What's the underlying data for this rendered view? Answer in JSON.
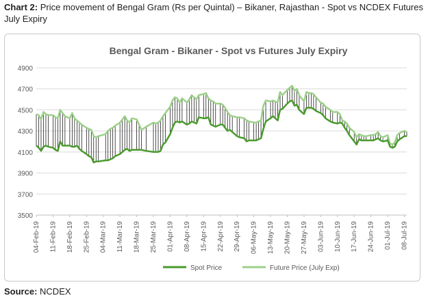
{
  "caption": {
    "prefix": "Chart 2:",
    "text": "Price movement of Bengal Gram (Rs per Quintal) – Bikaner, Rajasthan - Spot vs NCDEX Futures July Expiry"
  },
  "source": {
    "label": "Source:",
    "value": "NCDEX"
  },
  "colors": {
    "spot": "#4a9a2c",
    "futures": "#9dd08a",
    "connector": "#000000",
    "grid": "#d9d9d9",
    "text": "#595959"
  },
  "chart_data": {
    "type": "line",
    "title": "Bengal Gram - Bikaner - Spot vs Futures July Expiry",
    "xlabel": "",
    "ylabel": "",
    "ylim": [
      3500,
      4900
    ],
    "yticks": [
      3500,
      3700,
      3900,
      4100,
      4300,
      4500,
      4700,
      4900
    ],
    "grid": true,
    "legend": "bottom",
    "x_range": [
      "04-Feb-19",
      "09-Jul-19"
    ],
    "xtick_labels": [
      "04-Feb-19",
      "11-Feb-19",
      "18-Feb-19",
      "25-Feb-19",
      "04-Mar-19",
      "11-Mar-19",
      "18-Mar-19",
      "25-Mar-19",
      "01-Apr-19",
      "08-Apr-19",
      "15-Apr-19",
      "22-Apr-19",
      "29-Apr-19",
      "06-May-19",
      "13-May-19",
      "20-May-19",
      "27-May-19",
      "03-Jun-19",
      "10-Jun-19",
      "17-Jun-19",
      "24-Jun-19",
      "01-Jul-19",
      "08-Jul-19"
    ],
    "series": [
      {
        "name": "Spot Price",
        "points": [
          [
            "04-Feb-19",
            4160
          ],
          [
            "05-Feb-19",
            4140
          ],
          [
            "06-Feb-19",
            4110
          ],
          [
            "07-Feb-19",
            4150
          ],
          [
            "08-Feb-19",
            4160
          ],
          [
            "09-Feb-19",
            4150
          ],
          [
            "11-Feb-19",
            4140
          ],
          [
            "12-Feb-19",
            4120
          ],
          [
            "13-Feb-19",
            4110
          ],
          [
            "14-Feb-19",
            4200
          ],
          [
            "15-Feb-19",
            4160
          ],
          [
            "16-Feb-19",
            4160
          ],
          [
            "18-Feb-19",
            4160
          ],
          [
            "19-Feb-19",
            4150
          ],
          [
            "20-Feb-19",
            4150
          ],
          [
            "21-Feb-19",
            4160
          ],
          [
            "22-Feb-19",
            4130
          ],
          [
            "23-Feb-19",
            4110
          ],
          [
            "25-Feb-19",
            4080
          ],
          [
            "26-Feb-19",
            4060
          ],
          [
            "27-Feb-19",
            4050
          ],
          [
            "28-Feb-19",
            4000
          ],
          [
            "01-Mar-19",
            4010
          ],
          [
            "02-Mar-19",
            4010
          ],
          [
            "05-Mar-19",
            4020
          ],
          [
            "06-Mar-19",
            4020
          ],
          [
            "07-Mar-19",
            4030
          ],
          [
            "08-Mar-19",
            4040
          ],
          [
            "09-Mar-19",
            4060
          ],
          [
            "11-Mar-19",
            4080
          ],
          [
            "12-Mar-19",
            4100
          ],
          [
            "13-Mar-19",
            4120
          ],
          [
            "14-Mar-19",
            4130
          ],
          [
            "15-Mar-19",
            4110
          ],
          [
            "16-Mar-19",
            4120
          ],
          [
            "18-Mar-19",
            4120
          ],
          [
            "19-Mar-19",
            4120
          ],
          [
            "20-Mar-19",
            4120
          ],
          [
            "22-Mar-19",
            4110
          ],
          [
            "25-Mar-19",
            4100
          ],
          [
            "26-Mar-19",
            4100
          ],
          [
            "27-Mar-19",
            4100
          ],
          [
            "28-Mar-19",
            4110
          ],
          [
            "29-Mar-19",
            4170
          ],
          [
            "30-Mar-19",
            4190
          ],
          [
            "01-Apr-19",
            4270
          ],
          [
            "02-Apr-19",
            4330
          ],
          [
            "03-Apr-19",
            4380
          ],
          [
            "04-Apr-19",
            4390
          ],
          [
            "05-Apr-19",
            4380
          ],
          [
            "06-Apr-19",
            4390
          ],
          [
            "08-Apr-19",
            4360
          ],
          [
            "09-Apr-19",
            4370
          ],
          [
            "10-Apr-19",
            4390
          ],
          [
            "11-Apr-19",
            4380
          ],
          [
            "12-Apr-19",
            4370
          ],
          [
            "13-Apr-19",
            4430
          ],
          [
            "15-Apr-19",
            4420
          ],
          [
            "16-Apr-19",
            4420
          ],
          [
            "17-Apr-19",
            4430
          ],
          [
            "18-Apr-19",
            4360
          ],
          [
            "19-Apr-19",
            4350
          ],
          [
            "20-Apr-19",
            4340
          ],
          [
            "22-Apr-19",
            4360
          ],
          [
            "23-Apr-19",
            4360
          ],
          [
            "24-Apr-19",
            4330
          ],
          [
            "25-Apr-19",
            4300
          ],
          [
            "26-Apr-19",
            4310
          ],
          [
            "27-Apr-19",
            4290
          ],
          [
            "29-Apr-19",
            4250
          ],
          [
            "30-Apr-19",
            4240
          ],
          [
            "02-May-19",
            4230
          ],
          [
            "03-May-19",
            4200
          ],
          [
            "04-May-19",
            4210
          ],
          [
            "06-May-19",
            4210
          ],
          [
            "07-May-19",
            4210
          ],
          [
            "08-May-19",
            4220
          ],
          [
            "09-May-19",
            4230
          ],
          [
            "10-May-19",
            4320
          ],
          [
            "11-May-19",
            4390
          ],
          [
            "13-May-19",
            4420
          ],
          [
            "14-May-19",
            4440
          ],
          [
            "15-May-19",
            4420
          ],
          [
            "16-May-19",
            4400
          ],
          [
            "17-May-19",
            4500
          ],
          [
            "18-May-19",
            4510
          ],
          [
            "20-May-19",
            4560
          ],
          [
            "21-May-19",
            4580
          ],
          [
            "22-May-19",
            4590
          ],
          [
            "23-May-19",
            4540
          ],
          [
            "24-May-19",
            4550
          ],
          [
            "25-May-19",
            4500
          ],
          [
            "27-May-19",
            4460
          ],
          [
            "28-May-19",
            4520
          ],
          [
            "29-May-19",
            4520
          ],
          [
            "30-May-19",
            4520
          ],
          [
            "31-May-19",
            4510
          ],
          [
            "01-Jun-19",
            4490
          ],
          [
            "03-Jun-19",
            4470
          ],
          [
            "04-Jun-19",
            4450
          ],
          [
            "05-Jun-19",
            4420
          ],
          [
            "07-Jun-19",
            4390
          ],
          [
            "08-Jun-19",
            4380
          ],
          [
            "10-Jun-19",
            4370
          ],
          [
            "11-Jun-19",
            4380
          ],
          [
            "12-Jun-19",
            4370
          ],
          [
            "13-Jun-19",
            4330
          ],
          [
            "14-Jun-19",
            4300
          ],
          [
            "15-Jun-19",
            4260
          ],
          [
            "17-Jun-19",
            4200
          ],
          [
            "18-Jun-19",
            4170
          ],
          [
            "19-Jun-19",
            4220
          ],
          [
            "20-Jun-19",
            4210
          ],
          [
            "21-Jun-19",
            4210
          ],
          [
            "22-Jun-19",
            4210
          ],
          [
            "24-Jun-19",
            4210
          ],
          [
            "25-Jun-19",
            4210
          ],
          [
            "26-Jun-19",
            4220
          ],
          [
            "27-Jun-19",
            4230
          ],
          [
            "28-Jun-19",
            4210
          ],
          [
            "29-Jun-19",
            4200
          ],
          [
            "01-Jul-19",
            4210
          ],
          [
            "02-Jul-19",
            4150
          ],
          [
            "03-Jul-19",
            4140
          ],
          [
            "04-Jul-19",
            4150
          ],
          [
            "05-Jul-19",
            4200
          ],
          [
            "06-Jul-19",
            4220
          ],
          [
            "08-Jul-19",
            4250
          ],
          [
            "09-Jul-19",
            4250
          ]
        ]
      },
      {
        "name": "Future Price (July Exp)",
        "points": [
          [
            "04-Feb-19",
            4460
          ],
          [
            "05-Feb-19",
            4450
          ],
          [
            "06-Feb-19",
            4410
          ],
          [
            "07-Feb-19",
            4480
          ],
          [
            "08-Feb-19",
            4460
          ],
          [
            "09-Feb-19",
            4450
          ],
          [
            "11-Feb-19",
            4450
          ],
          [
            "12-Feb-19",
            4430
          ],
          [
            "13-Feb-19",
            4420
          ],
          [
            "14-Feb-19",
            4500
          ],
          [
            "15-Feb-19",
            4470
          ],
          [
            "16-Feb-19",
            4440
          ],
          [
            "18-Feb-19",
            4420
          ],
          [
            "19-Feb-19",
            4470
          ],
          [
            "20-Feb-19",
            4420
          ],
          [
            "21-Feb-19",
            4400
          ],
          [
            "22-Feb-19",
            4380
          ],
          [
            "23-Feb-19",
            4360
          ],
          [
            "25-Feb-19",
            4330
          ],
          [
            "26-Feb-19",
            4320
          ],
          [
            "27-Feb-19",
            4310
          ],
          [
            "28-Feb-19",
            4250
          ],
          [
            "01-Mar-19",
            4240
          ],
          [
            "02-Mar-19",
            4250
          ],
          [
            "05-Mar-19",
            4270
          ],
          [
            "06-Mar-19",
            4300
          ],
          [
            "07-Mar-19",
            4320
          ],
          [
            "08-Mar-19",
            4330
          ],
          [
            "09-Mar-19",
            4350
          ],
          [
            "11-Mar-19",
            4380
          ],
          [
            "12-Mar-19",
            4410
          ],
          [
            "13-Mar-19",
            4440
          ],
          [
            "14-Mar-19",
            4400
          ],
          [
            "15-Mar-19",
            4380
          ],
          [
            "16-Mar-19",
            4420
          ],
          [
            "18-Mar-19",
            4410
          ],
          [
            "19-Mar-19",
            4360
          ],
          [
            "20-Mar-19",
            4310
          ],
          [
            "22-Mar-19",
            4340
          ],
          [
            "25-Mar-19",
            4380
          ],
          [
            "26-Mar-19",
            4370
          ],
          [
            "27-Mar-19",
            4380
          ],
          [
            "28-Mar-19",
            4400
          ],
          [
            "29-Mar-19",
            4440
          ],
          [
            "30-Mar-19",
            4470
          ],
          [
            "01-Apr-19",
            4530
          ],
          [
            "02-Apr-19",
            4590
          ],
          [
            "03-Apr-19",
            4620
          ],
          [
            "04-Apr-19",
            4610
          ],
          [
            "05-Apr-19",
            4570
          ],
          [
            "06-Apr-19",
            4610
          ],
          [
            "08-Apr-19",
            4570
          ],
          [
            "09-Apr-19",
            4600
          ],
          [
            "10-Apr-19",
            4640
          ],
          [
            "11-Apr-19",
            4620
          ],
          [
            "12-Apr-19",
            4600
          ],
          [
            "13-Apr-19",
            4640
          ],
          [
            "15-Apr-19",
            4650
          ],
          [
            "16-Apr-19",
            4660
          ],
          [
            "17-Apr-19",
            4610
          ],
          [
            "18-Apr-19",
            4590
          ],
          [
            "19-Apr-19",
            4580
          ],
          [
            "20-Apr-19",
            4560
          ],
          [
            "22-Apr-19",
            4560
          ],
          [
            "23-Apr-19",
            4550
          ],
          [
            "24-Apr-19",
            4520
          ],
          [
            "25-Apr-19",
            4480
          ],
          [
            "26-Apr-19",
            4450
          ],
          [
            "27-Apr-19",
            4440
          ],
          [
            "29-Apr-19",
            4430
          ],
          [
            "30-Apr-19",
            4430
          ],
          [
            "02-May-19",
            4420
          ],
          [
            "03-May-19",
            4400
          ],
          [
            "04-May-19",
            4390
          ],
          [
            "06-May-19",
            4380
          ],
          [
            "07-May-19",
            4380
          ],
          [
            "08-May-19",
            4390
          ],
          [
            "09-May-19",
            4400
          ],
          [
            "10-May-19",
            4540
          ],
          [
            "11-May-19",
            4590
          ],
          [
            "13-May-19",
            4580
          ],
          [
            "14-May-19",
            4590
          ],
          [
            "15-May-19",
            4580
          ],
          [
            "16-May-19",
            4570
          ],
          [
            "17-May-19",
            4670
          ],
          [
            "18-May-19",
            4640
          ],
          [
            "20-May-19",
            4690
          ],
          [
            "21-May-19",
            4710
          ],
          [
            "22-May-19",
            4730
          ],
          [
            "23-May-19",
            4680
          ],
          [
            "24-May-19",
            4700
          ],
          [
            "25-May-19",
            4640
          ],
          [
            "27-May-19",
            4580
          ],
          [
            "28-May-19",
            4670
          ],
          [
            "29-May-19",
            4660
          ],
          [
            "30-May-19",
            4660
          ],
          [
            "31-May-19",
            4650
          ],
          [
            "01-Jun-19",
            4620
          ],
          [
            "03-Jun-19",
            4570
          ],
          [
            "04-Jun-19",
            4560
          ],
          [
            "05-Jun-19",
            4530
          ],
          [
            "07-Jun-19",
            4500
          ],
          [
            "08-Jun-19",
            4480
          ],
          [
            "10-Jun-19",
            4480
          ],
          [
            "11-Jun-19",
            4460
          ],
          [
            "12-Jun-19",
            4400
          ],
          [
            "13-Jun-19",
            4390
          ],
          [
            "14-Jun-19",
            4370
          ],
          [
            "15-Jun-19",
            4330
          ],
          [
            "17-Jun-19",
            4290
          ],
          [
            "18-Jun-19",
            4240
          ],
          [
            "19-Jun-19",
            4270
          ],
          [
            "20-Jun-19",
            4260
          ],
          [
            "21-Jun-19",
            4250
          ],
          [
            "22-Jun-19",
            4250
          ],
          [
            "24-Jun-19",
            4260
          ],
          [
            "25-Jun-19",
            4260
          ],
          [
            "26-Jun-19",
            4270
          ],
          [
            "27-Jun-19",
            4290
          ],
          [
            "28-Jun-19",
            4250
          ],
          [
            "29-Jun-19",
            4240
          ],
          [
            "01-Jul-19",
            4260
          ],
          [
            "02-Jul-19",
            4180
          ],
          [
            "03-Jul-19",
            4170
          ],
          [
            "04-Jul-19",
            4190
          ],
          [
            "05-Jul-19",
            4260
          ],
          [
            "06-Jul-19",
            4280
          ],
          [
            "08-Jul-19",
            4300
          ],
          [
            "09-Jul-19",
            4290
          ]
        ]
      }
    ]
  }
}
